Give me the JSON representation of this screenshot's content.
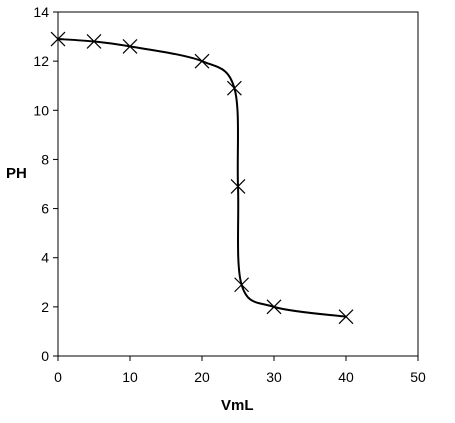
{
  "chart_data": {
    "type": "line",
    "title": "",
    "xlabel": "VmL",
    "ylabel": "PH",
    "xlim": [
      0,
      50
    ],
    "ylim": [
      0,
      14
    ],
    "xticks": [
      0,
      10,
      20,
      30,
      40,
      50
    ],
    "yticks": [
      0,
      2,
      4,
      6,
      8,
      10,
      12,
      14
    ],
    "grid": false,
    "legend": "none",
    "series": [
      {
        "marker": "x",
        "color": "#000000",
        "points": [
          {
            "x": 0,
            "y": 12.9
          },
          {
            "x": 5,
            "y": 12.8
          },
          {
            "x": 10,
            "y": 12.6
          },
          {
            "x": 20,
            "y": 12.0
          },
          {
            "x": 24.5,
            "y": 10.9
          },
          {
            "x": 25,
            "y": 6.9
          },
          {
            "x": 25.5,
            "y": 2.9
          },
          {
            "x": 30,
            "y": 2.0
          },
          {
            "x": 40,
            "y": 1.6
          }
        ]
      }
    ]
  }
}
